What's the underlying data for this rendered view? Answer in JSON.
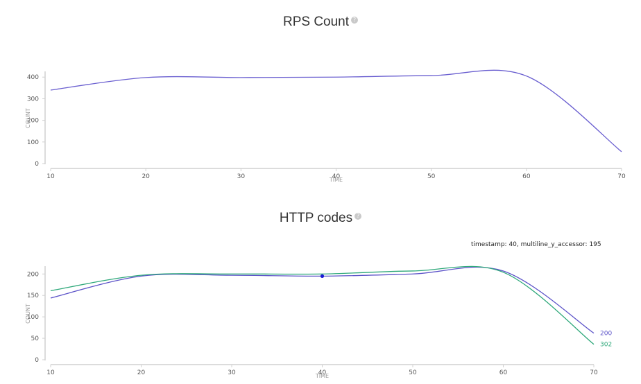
{
  "charts": {
    "rps": {
      "title": "RPS Count",
      "help_icon": "question-icon"
    },
    "http": {
      "title": "HTTP codes",
      "help_icon": "question-icon",
      "tooltip": "timestamp: 40, multiline_y_accessor: 195"
    }
  },
  "chart_data": [
    {
      "type": "line",
      "title": "RPS Count",
      "xlabel": "TIME",
      "ylabel": "COUNT",
      "xlim": [
        10,
        70
      ],
      "ylim": [
        0,
        420
      ],
      "xticks": [
        10,
        20,
        30,
        40,
        50,
        60,
        70
      ],
      "yticks": [
        0,
        100,
        200,
        300,
        400
      ],
      "grid": false,
      "series": [
        {
          "color": "#6a5fd0",
          "x": [
            10,
            20,
            30,
            40,
            50,
            60,
            70
          ],
          "values": [
            340,
            398,
            398,
            400,
            407,
            405,
            55
          ]
        }
      ]
    },
    {
      "type": "line",
      "title": "HTTP codes",
      "xlabel": "TIME",
      "ylabel": "COUNT",
      "xlim": [
        10,
        70
      ],
      "ylim": [
        0,
        215
      ],
      "xticks": [
        10,
        20,
        30,
        40,
        50,
        60,
        70
      ],
      "yticks": [
        0,
        50,
        100,
        150,
        200
      ],
      "grid": false,
      "series": [
        {
          "name": "200",
          "color": "#5b52c8",
          "x": [
            10,
            20,
            30,
            40,
            50,
            60,
            70
          ],
          "values": [
            144,
            195,
            197,
            195,
            200,
            207,
            62
          ]
        },
        {
          "name": "302",
          "color": "#2ea87a",
          "x": [
            10,
            20,
            30,
            40,
            50,
            60,
            70
          ],
          "values": [
            161,
            197,
            200,
            200,
            207,
            204,
            36
          ]
        }
      ],
      "highlight_point": {
        "series": "200",
        "x": 40,
        "y": 195,
        "color": "#1a1ad6"
      }
    }
  ]
}
